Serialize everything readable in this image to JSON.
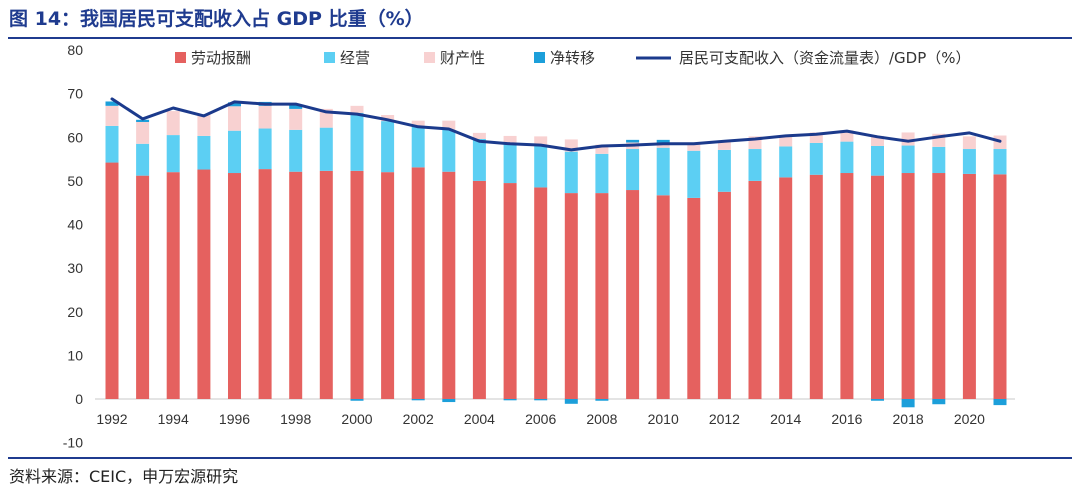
{
  "figure": {
    "accent_color": "#1F3B8F"
  },
  "source": "资料来源：CEIC，申万宏源研究",
  "chart_data": {
    "type": "bar",
    "stacked": true,
    "title": "图 14：我国居民可支配收入占 GDP 比重（%）",
    "categories": [
      "1992",
      "1993",
      "1994",
      "1995",
      "1996",
      "1997",
      "1998",
      "1999",
      "2000",
      "2001",
      "2002",
      "2003",
      "2004",
      "2005",
      "2006",
      "2007",
      "2008",
      "2009",
      "2010",
      "2011",
      "2012",
      "2013",
      "2014",
      "2015",
      "2016",
      "2017",
      "2018",
      "2019",
      "2020",
      "2021"
    ],
    "x_tick_labels": [
      "1992",
      "1994",
      "1996",
      "1998",
      "2000",
      "2002",
      "2004",
      "2006",
      "2008",
      "2010",
      "2012",
      "2014",
      "2016",
      "2018",
      "2020"
    ],
    "y_ticks": [
      -10,
      0,
      10,
      20,
      30,
      40,
      50,
      60,
      70,
      80
    ],
    "ylim": [
      -10,
      80
    ],
    "grid": false,
    "legend_position": "top",
    "series": [
      {
        "name": "劳动报酬",
        "type": "bar",
        "color": "#E5615F",
        "values": [
          54.2,
          51.2,
          52.0,
          52.6,
          51.8,
          52.7,
          52.1,
          52.3,
          52.3,
          52.0,
          53.1,
          52.1,
          50.0,
          49.5,
          48.5,
          47.2,
          47.2,
          47.9,
          46.7,
          46.1,
          47.5,
          50.0,
          50.8,
          51.4,
          51.8,
          51.2,
          51.8,
          51.8,
          51.6,
          51.5
        ]
      },
      {
        "name": "经营",
        "type": "bar",
        "color": "#5CCFF3",
        "values": [
          8.4,
          7.3,
          8.5,
          7.7,
          9.7,
          9.3,
          9.6,
          9.9,
          13.3,
          11.7,
          9.3,
          9.6,
          9.6,
          9.1,
          9.8,
          9.5,
          9.0,
          9.4,
          10.9,
          10.8,
          9.6,
          7.3,
          7.1,
          7.3,
          7.2,
          6.8,
          6.3,
          6.0,
          5.7,
          5.8
        ]
      },
      {
        "name": "财产性",
        "type": "bar",
        "color": "#F8D1D1",
        "values": [
          4.6,
          5.0,
          5.5,
          4.9,
          5.6,
          5.2,
          4.8,
          4.3,
          1.6,
          1.4,
          1.4,
          2.1,
          1.4,
          1.7,
          1.9,
          2.8,
          2.1,
          1.5,
          1.2,
          1.9,
          2.1,
          2.9,
          2.6,
          2.4,
          2.6,
          2.3,
          3.0,
          3.0,
          2.9,
          3.1
        ]
      },
      {
        "name": "净转移",
        "type": "bar",
        "color": "#1C9FDA",
        "values": [
          1.0,
          0.5,
          0.0,
          0.0,
          0.9,
          0.9,
          0.9,
          0.0,
          -0.4,
          0.0,
          -0.3,
          -0.7,
          0.0,
          -0.3,
          -0.3,
          -1.1,
          -0.4,
          0.6,
          0.6,
          0.0,
          0.0,
          0.0,
          0.0,
          0.0,
          0.0,
          -0.4,
          -1.9,
          -1.2,
          0.0,
          -1.4
        ]
      },
      {
        "name": "居民可支配收入（资金流量表）/GDP（%）",
        "type": "line",
        "color": "#1B3A8C",
        "values": [
          68.8,
          64.2,
          66.7,
          64.9,
          68.1,
          67.6,
          67.6,
          65.8,
          65.3,
          64.0,
          62.4,
          61.9,
          59.1,
          58.5,
          58.2,
          57.1,
          58.0,
          58.2,
          58.5,
          58.5,
          59.1,
          59.6,
          60.3,
          60.7,
          61.4,
          60.1,
          59.1,
          60.1,
          61.0,
          59.1
        ]
      }
    ]
  }
}
